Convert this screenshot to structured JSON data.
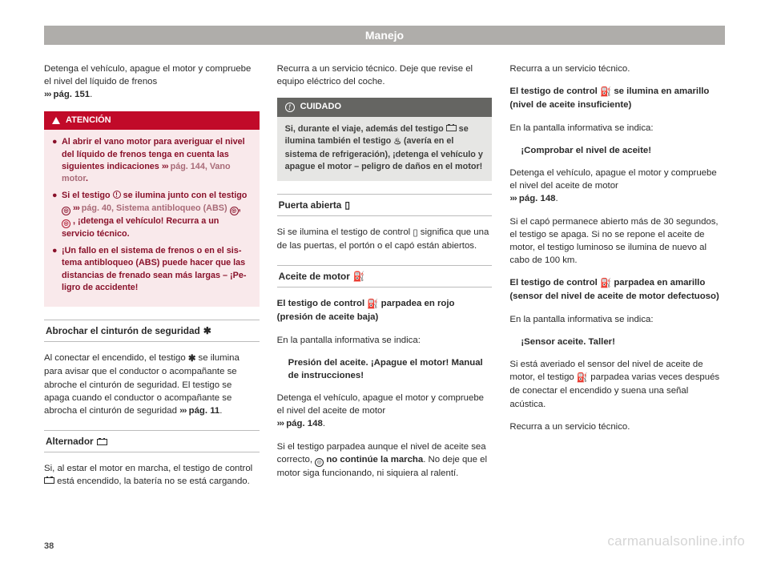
{
  "header_title": "Manejo",
  "page_number": "38",
  "watermark": "carmanualsonline.info",
  "col1": {
    "p1a": "Detenga el vehículo, apague el motor y com­pruebe el nivel del líquido de frenos",
    "p1b": " pág. 151",
    "p1c": ".",
    "atn_label": "ATENCIÓN",
    "b1a": "Al abrir el vano motor para averiguar el ni­vel del líquido de frenos tenga en cuenta las siguientes indicaciones ",
    "b1b": " pág. 144, Vano motor",
    "b1c": ".",
    "b2a": "Si el testigo ",
    "b2b": " se ilumina junto con el testi­go ",
    "b2c": " pág. 40, Sistema antibloqueo (ABS) ",
    "b2d": ", ¡detenga el vehículo! Recurra a un servicio técnico.",
    "b3": "¡Un fallo en el sistema de frenos o en el sis­tema antibloqueo (ABS) puede hacer que las distancias de frenado sean más largas – ¡Pe­ligro de accidente!",
    "sec1": "Abrochar el cinturón de seguridad ",
    "p2a": "Al conectar el encendido, el testigo ",
    "p2b": " se ilu­mina para avisar que el conductor o acompa­ñante se abroche el cinturón de seguridad. El testigo se apaga cuando el conductor o acompañante se abrocha el cinturón de se­guridad ",
    "p2c": " pág. 11",
    "p2d": ".",
    "sec2": "Alternador ",
    "p3a": "Si, al estar el motor en marcha, el testigo de control ",
    "p3b": " está encendido, la batería no se está cargando."
  },
  "col2": {
    "p1": "Recurra a un servicio técnico. Deje que revise el equipo eléctrico del coche.",
    "cud_label": "CUIDADO",
    "cud_a": "Si, durante el viaje, además del testigo ",
    "cud_b": " se ilumina también el testigo ",
    "cud_c": " (avería en el sistema de refrigeración), ¡detenga el vehícu­lo y apague el motor – peligro de daños en el motor!",
    "sec1": "Puerta abierta ",
    "p2a": "Si se ilumina el testigo de control ",
    "p2b": " significa que una de las puertas, el portón o el capó están abiertos.",
    "sec2": "Aceite de motor ",
    "h1": "El testigo de control ",
    "h1b": " parpadea en rojo (presión de aceite baja)",
    "p3": "En la pantalla informativa se indica:",
    "p4": "Presión del aceite. ¡Apague el motor! Manual de instrucciones!",
    "p5a": "Detenga el vehículo, apague el motor y com­pruebe el nivel del aceite de motor",
    "p5b": " pág. 148",
    "p5c": ".",
    "p6a": "Si el testigo parpadea aunque el nivel de aceite sea correcto, ",
    "p6b": " no continúe la marcha",
    "p6c": ". No deje que el motor siga funcionando, ni si­quiera al ralentí."
  },
  "col3": {
    "p1": "Recurra a un servicio técnico.",
    "h1a": "El testigo de control ",
    "h1b": " se ilumina en amarillo (nivel de aceite insuficiente)",
    "p2": "En la pantalla informativa se indica:",
    "p3": "¡Comprobar el nivel de aceite!",
    "p4a": "Detenga el vehículo, apague el motor y com­pruebe el nivel del aceite de motor",
    "p4b": " pág. 148",
    "p4c": ".",
    "p5": "Si el capó permanece abierto más de 30 se­gundos, el testigo se apaga. Si no se repone el aceite de motor, el testigo luminoso se ilu­mina de nuevo al cabo de 100 km.",
    "h2a": "El testigo de control ",
    "h2b": " parpadea en amarillo (sensor del nivel de aceite de motor defectuoso)",
    "p6": "En la pantalla informativa se indica:",
    "p7": "¡Sensor aceite. Taller!",
    "p8a": "Si está averiado el sensor del nivel de aceite de motor, el testigo ",
    "p8b": " parpadea varias ve­ces después de conectar el encendido y sue­na una señal acústica.",
    "p9": "Recurra a un servicio técnico."
  },
  "icons": {
    "belt": "⚐",
    "door": "▯",
    "oil": "⛽",
    "temp": "🌡"
  }
}
